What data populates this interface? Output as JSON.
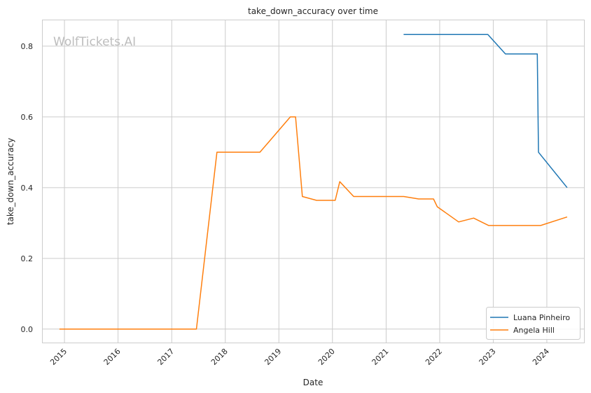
{
  "chart_data": {
    "type": "line",
    "title": "take_down_accuracy over time",
    "xlabel": "Date",
    "ylabel": "take_down_accuracy",
    "watermark": "WolfTickets.AI",
    "xlim": [
      "2014-08-01",
      "2024-09-15"
    ],
    "ylim": [
      -0.04,
      0.875
    ],
    "x_ticks": [
      "2015",
      "2016",
      "2017",
      "2018",
      "2019",
      "2020",
      "2021",
      "2022",
      "2023",
      "2024"
    ],
    "y_ticks": [
      "0.0",
      "0.2",
      "0.4",
      "0.6",
      "0.8"
    ],
    "y_tick_values": [
      0.0,
      0.2,
      0.4,
      0.6,
      0.8
    ],
    "grid": true,
    "legend_position": "lower-right",
    "series": [
      {
        "name": "Luana Pinheiro",
        "color": "#1f77b4",
        "points": [
          [
            "2021-04-30",
            0.833
          ],
          [
            "2022-11-25",
            0.833
          ],
          [
            "2023-03-25",
            0.778
          ],
          [
            "2023-10-28",
            0.778
          ],
          [
            "2023-11-05",
            0.5
          ],
          [
            "2024-05-18",
            0.4
          ]
        ]
      },
      {
        "name": "Angela Hill",
        "color": "#ff7f0e",
        "points": [
          [
            "2014-11-28",
            0.0
          ],
          [
            "2017-06-18",
            0.0
          ],
          [
            "2017-11-05",
            0.5
          ],
          [
            "2018-08-25",
            0.5
          ],
          [
            "2019-03-20",
            0.6
          ],
          [
            "2019-04-25",
            0.6
          ],
          [
            "2019-06-10",
            0.375
          ],
          [
            "2019-09-15",
            0.364
          ],
          [
            "2020-01-20",
            0.364
          ],
          [
            "2020-02-20",
            0.417
          ],
          [
            "2020-05-25",
            0.375
          ],
          [
            "2021-05-01",
            0.375
          ],
          [
            "2021-08-10",
            0.368
          ],
          [
            "2021-11-20",
            0.368
          ],
          [
            "2021-12-15",
            0.346
          ],
          [
            "2022-05-10",
            0.303
          ],
          [
            "2022-08-20",
            0.314
          ],
          [
            "2022-12-01",
            0.293
          ],
          [
            "2023-11-20",
            0.293
          ],
          [
            "2024-05-18",
            0.317
          ]
        ]
      }
    ]
  }
}
